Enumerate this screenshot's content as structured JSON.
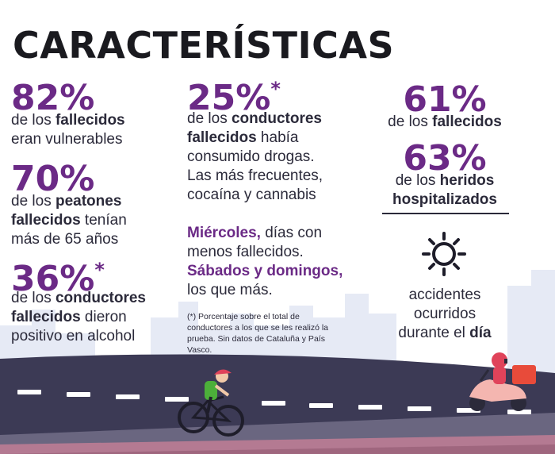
{
  "title": "CARACTERÍSTICAS",
  "col1": {
    "s1": {
      "pct": "82%",
      "l1a": "de los ",
      "l1b": "fallecidos",
      "l2": "eran vulnerables"
    },
    "s2": {
      "pct": "70%",
      "l1a": "de los ",
      "l1b": "peatones",
      "l2a": "fallecidos",
      "l2b": " tenían",
      "l3": "más de 65 años"
    },
    "s3": {
      "pct": "36%",
      "star": "*",
      "l1a": "de los ",
      "l1b": "conductores",
      "l2a": "fallecidos",
      "l2b": " dieron",
      "l3": "positivo en alcohol"
    }
  },
  "col2": {
    "s1": {
      "pct": "25%",
      "star": "*",
      "l1a": "de los ",
      "l1b": "conductores",
      "l2a": "fallecidos",
      "l2b": " había",
      "l3": "consumido drogas.",
      "l4": "Las más frecuentes,",
      "l5": "cocaína y cannabis"
    },
    "days": {
      "d1": "Miércoles,",
      "d1b": " días con",
      "d2": "menos fallecidos.",
      "d3": "Sábados y domingos,",
      "d4": "los que más."
    },
    "note": {
      "l1": "(*) Porcentaje sobre el total de",
      "l2": "conductores a los que se les realizó la",
      "l3": "prueba. Sin datos de Cataluña y País",
      "l4": "Vasco."
    }
  },
  "col3": {
    "s1": {
      "pct": "61%",
      "l1a": "de los ",
      "l1b": "fallecidos"
    },
    "s2": {
      "pct": "63%",
      "l1a": "de los ",
      "l1b": "heridos",
      "l2": "hospitalizados"
    },
    "accidents": {
      "l1": "accidentes",
      "l2": "ocurridos",
      "l3a": "durante el ",
      "l3b": "día"
    }
  },
  "icons": {
    "sun": "sun-icon",
    "cyclist": "cyclist-icon",
    "scooter": "scooter-rider-icon"
  },
  "colors": {
    "accent": "#6b2a86",
    "text": "#2b2a3a",
    "road": "#3c3a55",
    "skyline": "#e6eaf5",
    "helmet": "#e0435a"
  }
}
